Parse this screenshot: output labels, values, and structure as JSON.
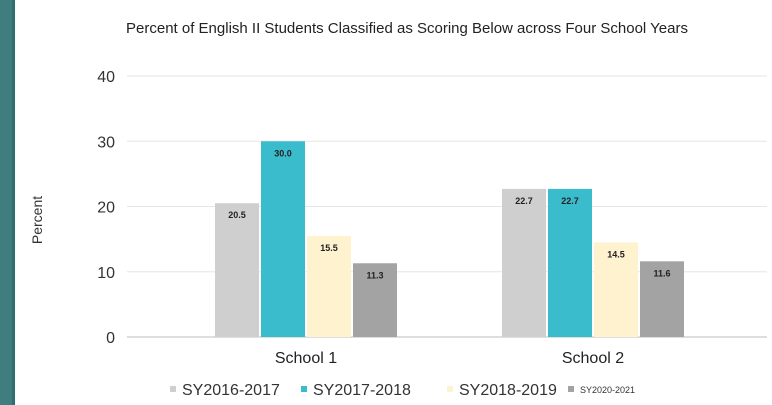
{
  "chart_data": {
    "type": "bar",
    "title": "Percent of English II Students Classified as Scoring Below across Four School Years",
    "xlabel": "",
    "ylabel": "Percent",
    "categories": [
      "School 1",
      "School 2"
    ],
    "ylim": [
      0,
      40
    ],
    "yticks": [
      0,
      10,
      20,
      30,
      40
    ],
    "grid": true,
    "legend_position": "bottom",
    "series": [
      {
        "name": "SY2016-2017",
        "values": [
          20.5,
          22.7
        ],
        "color": "#cfcfcf"
      },
      {
        "name": "SY2017-2018",
        "values": [
          30.0,
          22.7
        ],
        "color": "#3bbccc"
      },
      {
        "name": "SY2018-2019",
        "values": [
          15.5,
          14.5
        ],
        "color": "#fff3cf"
      },
      {
        "name": "SY2020-2021",
        "values": [
          11.3,
          11.6
        ],
        "color": "#a3a3a3"
      }
    ],
    "data_labels": [
      [
        "20.5",
        "22.7"
      ],
      [
        "30.0",
        "22.7"
      ],
      [
        "15.5",
        "14.5"
      ],
      [
        "11.3",
        "11.6"
      ]
    ]
  }
}
